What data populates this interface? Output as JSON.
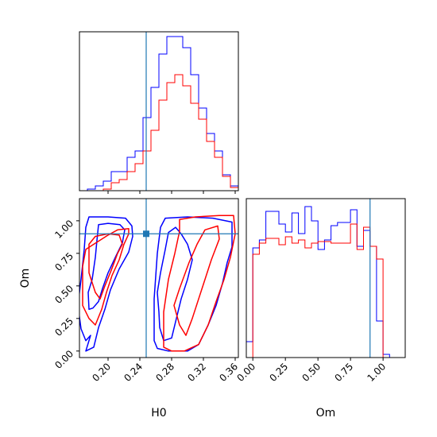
{
  "chart_data": {
    "type": "corner",
    "parameters": [
      "H0",
      "Om"
    ],
    "truth": {
      "H0": 0.248,
      "Om": 0.9
    },
    "colors": {
      "series_blue": "#0000ff",
      "series_red": "#ff0000",
      "truth": "#1f77b4"
    },
    "series": [
      {
        "color": "blue",
        "h0_hist": {
          "edges": [
            0.164,
            0.174,
            0.184,
            0.194,
            0.204,
            0.214,
            0.224,
            0.234,
            0.244,
            0.254,
            0.264,
            0.274,
            0.284,
            0.294,
            0.304,
            0.314,
            0.324,
            0.334,
            0.344,
            0.354,
            0.364
          ],
          "heights": [
            0.0,
            0.01,
            0.03,
            0.06,
            0.12,
            0.12,
            0.21,
            0.25,
            0.46,
            0.65,
            0.86,
            0.97,
            0.97,
            0.9,
            0.73,
            0.52,
            0.36,
            0.25,
            0.1,
            0.03
          ]
        },
        "om_hist": {
          "edges": [
            -0.1,
            -0.05,
            0.0,
            0.05,
            0.1,
            0.15,
            0.2,
            0.25,
            0.3,
            0.35,
            0.4,
            0.45,
            0.5,
            0.55,
            0.6,
            0.65,
            0.7,
            0.75,
            0.8,
            0.85,
            0.9,
            0.95,
            1.0,
            1.05
          ],
          "heights": [
            0.0,
            0.1,
            0.69,
            0.74,
            0.92,
            0.92,
            0.84,
            0.79,
            0.91,
            0.78,
            0.95,
            0.86,
            0.68,
            0.74,
            0.83,
            0.85,
            0.85,
            0.93,
            0.7,
            0.8,
            0.7,
            0.23,
            0.02
          ]
        },
        "contours": [
          [
            [
              0.181,
              0.33
            ],
            [
              0.176,
              0.32
            ],
            [
              0.175,
              0.45
            ],
            [
              0.18,
              0.55
            ],
            [
              0.184,
              0.72
            ],
            [
              0.186,
              0.85
            ],
            [
              0.188,
              0.97
            ],
            [
              0.2,
              0.98
            ],
            [
              0.215,
              0.97
            ],
            [
              0.221,
              0.93
            ],
            [
              0.218,
              0.83
            ],
            [
              0.21,
              0.73
            ],
            [
              0.2,
              0.6
            ],
            [
              0.193,
              0.48
            ],
            [
              0.188,
              0.38
            ],
            [
              0.181,
              0.33
            ]
          ],
          [
            [
              0.178,
              0.12
            ],
            [
              0.172,
              0.08
            ],
            [
              0.166,
              0.17
            ],
            [
              0.162,
              0.35
            ],
            [
              0.166,
              0.55
            ],
            [
              0.17,
              0.78
            ],
            [
              0.172,
              0.95
            ],
            [
              0.176,
              1.03
            ],
            [
              0.2,
              1.03
            ],
            [
              0.222,
              1.02
            ],
            [
              0.23,
              0.96
            ],
            [
              0.231,
              0.88
            ],
            [
              0.226,
              0.76
            ],
            [
              0.214,
              0.63
            ],
            [
              0.203,
              0.47
            ],
            [
              0.196,
              0.32
            ],
            [
              0.188,
              0.18
            ],
            [
              0.182,
              0.03
            ],
            [
              0.172,
              0.0
            ],
            [
              0.178,
              0.12
            ]
          ],
          [
            [
              0.264,
              0.3
            ],
            [
              0.262,
              0.45
            ],
            [
              0.266,
              0.6
            ],
            [
              0.272,
              0.78
            ],
            [
              0.276,
              0.91
            ],
            [
              0.285,
              0.95
            ],
            [
              0.292,
              0.9
            ],
            [
              0.3,
              0.82
            ],
            [
              0.306,
              0.7
            ],
            [
              0.3,
              0.55
            ],
            [
              0.292,
              0.4
            ],
            [
              0.286,
              0.25
            ],
            [
              0.28,
              0.1
            ],
            [
              0.27,
              0.08
            ],
            [
              0.265,
              0.18
            ],
            [
              0.264,
              0.3
            ]
          ],
          [
            [
              0.258,
              0.08
            ],
            [
              0.258,
              0.4
            ],
            [
              0.262,
              0.75
            ],
            [
              0.266,
              0.95
            ],
            [
              0.272,
              1.02
            ],
            [
              0.3,
              1.03
            ],
            [
              0.332,
              1.02
            ],
            [
              0.356,
              0.99
            ],
            [
              0.356,
              0.8
            ],
            [
              0.35,
              0.68
            ],
            [
              0.344,
              0.52
            ],
            [
              0.336,
              0.35
            ],
            [
              0.326,
              0.2
            ],
            [
              0.314,
              0.05
            ],
            [
              0.3,
              0.0
            ],
            [
              0.276,
              0.0
            ],
            [
              0.262,
              0.02
            ],
            [
              0.258,
              0.08
            ]
          ]
        ]
      },
      {
        "color": "red",
        "h0_hist": {
          "edges": [
            0.164,
            0.174,
            0.184,
            0.194,
            0.204,
            0.214,
            0.224,
            0.234,
            0.244,
            0.254,
            0.264,
            0.274,
            0.284,
            0.294,
            0.304,
            0.314,
            0.324,
            0.334,
            0.344,
            0.354,
            0.364
          ],
          "heights": [
            0.0,
            0.0,
            0.0,
            0.01,
            0.05,
            0.07,
            0.12,
            0.17,
            0.25,
            0.38,
            0.57,
            0.68,
            0.73,
            0.66,
            0.55,
            0.45,
            0.31,
            0.21,
            0.09,
            0.02
          ]
        },
        "om_hist": {
          "edges": [
            0.0,
            0.05,
            0.1,
            0.15,
            0.2,
            0.25,
            0.3,
            0.35,
            0.4,
            0.45,
            0.5,
            0.55,
            0.6,
            0.65,
            0.7,
            0.75,
            0.8,
            0.85,
            0.9,
            0.95,
            1.0,
            1.05
          ],
          "heights": [
            0.65,
            0.72,
            0.75,
            0.75,
            0.71,
            0.76,
            0.72,
            0.74,
            0.69,
            0.72,
            0.73,
            0.73,
            0.72,
            0.72,
            0.72,
            0.84,
            0.68,
            0.82,
            0.7,
            0.62,
            0.0
          ]
        },
        "contours": [
          [
            [
              0.184,
              0.45
            ],
            [
              0.176,
              0.6
            ],
            [
              0.176,
              0.82
            ],
            [
              0.184,
              0.88
            ],
            [
              0.2,
              0.9
            ],
            [
              0.214,
              0.89
            ],
            [
              0.218,
              0.82
            ],
            [
              0.212,
              0.75
            ],
            [
              0.204,
              0.62
            ],
            [
              0.196,
              0.5
            ],
            [
              0.19,
              0.4
            ],
            [
              0.184,
              0.45
            ]
          ],
          [
            [
              0.176,
              0.25
            ],
            [
              0.168,
              0.35
            ],
            [
              0.168,
              0.65
            ],
            [
              0.172,
              0.78
            ],
            [
              0.182,
              0.82
            ],
            [
              0.2,
              0.89
            ],
            [
              0.212,
              0.93
            ],
            [
              0.226,
              0.94
            ],
            [
              0.226,
              0.9
            ],
            [
              0.22,
              0.82
            ],
            [
              0.214,
              0.7
            ],
            [
              0.205,
              0.58
            ],
            [
              0.198,
              0.45
            ],
            [
              0.192,
              0.32
            ],
            [
              0.184,
              0.2
            ],
            [
              0.176,
              0.25
            ]
          ],
          [
            [
              0.29,
              0.2
            ],
            [
              0.283,
              0.35
            ],
            [
              0.29,
              0.48
            ],
            [
              0.302,
              0.68
            ],
            [
              0.312,
              0.82
            ],
            [
              0.322,
              0.93
            ],
            [
              0.338,
              0.96
            ],
            [
              0.34,
              0.86
            ],
            [
              0.33,
              0.7
            ],
            [
              0.322,
              0.55
            ],
            [
              0.314,
              0.4
            ],
            [
              0.306,
              0.25
            ],
            [
              0.298,
              0.12
            ],
            [
              0.29,
              0.2
            ]
          ],
          [
            [
              0.27,
              0.03
            ],
            [
              0.27,
              0.3
            ],
            [
              0.276,
              0.55
            ],
            [
              0.284,
              0.75
            ],
            [
              0.29,
              0.92
            ],
            [
              0.29,
              1.01
            ],
            [
              0.31,
              1.03
            ],
            [
              0.34,
              1.04
            ],
            [
              0.358,
              1.04
            ],
            [
              0.36,
              0.9
            ],
            [
              0.354,
              0.72
            ],
            [
              0.346,
              0.55
            ],
            [
              0.336,
              0.38
            ],
            [
              0.326,
              0.2
            ],
            [
              0.314,
              0.05
            ],
            [
              0.296,
              0.0
            ],
            [
              0.28,
              0.0
            ],
            [
              0.27,
              0.03
            ]
          ]
        ]
      }
    ],
    "axes": {
      "top_hist": {
        "xlim": [
          0.164,
          0.364
        ],
        "xticks": [
          0.2,
          0.24,
          0.28,
          0.32,
          0.36
        ]
      },
      "joint": {
        "xlim": [
          0.164,
          0.364
        ],
        "ylim": [
          -0.05,
          1.17
        ],
        "xticks": [
          0.2,
          0.24,
          0.28,
          0.32,
          0.36
        ],
        "yticks": [
          0.0,
          0.25,
          0.5,
          0.75,
          1.0
        ],
        "xticklabels": [
          "0.20",
          "0.24",
          "0.28",
          "0.32",
          "0.36"
        ],
        "yticklabels": [
          "0.00",
          "0.25",
          "0.50",
          "0.75",
          "1.00"
        ],
        "xlabel": "H0",
        "ylabel": "Om"
      },
      "right_hist": {
        "xlim": [
          -0.05,
          1.17
        ],
        "xticks": [
          0.0,
          0.25,
          0.5,
          0.75,
          1.0
        ],
        "xticklabels": [
          "0.00",
          "0.25",
          "0.50",
          "0.75",
          "1.00"
        ],
        "xlabel": "Om"
      }
    }
  }
}
